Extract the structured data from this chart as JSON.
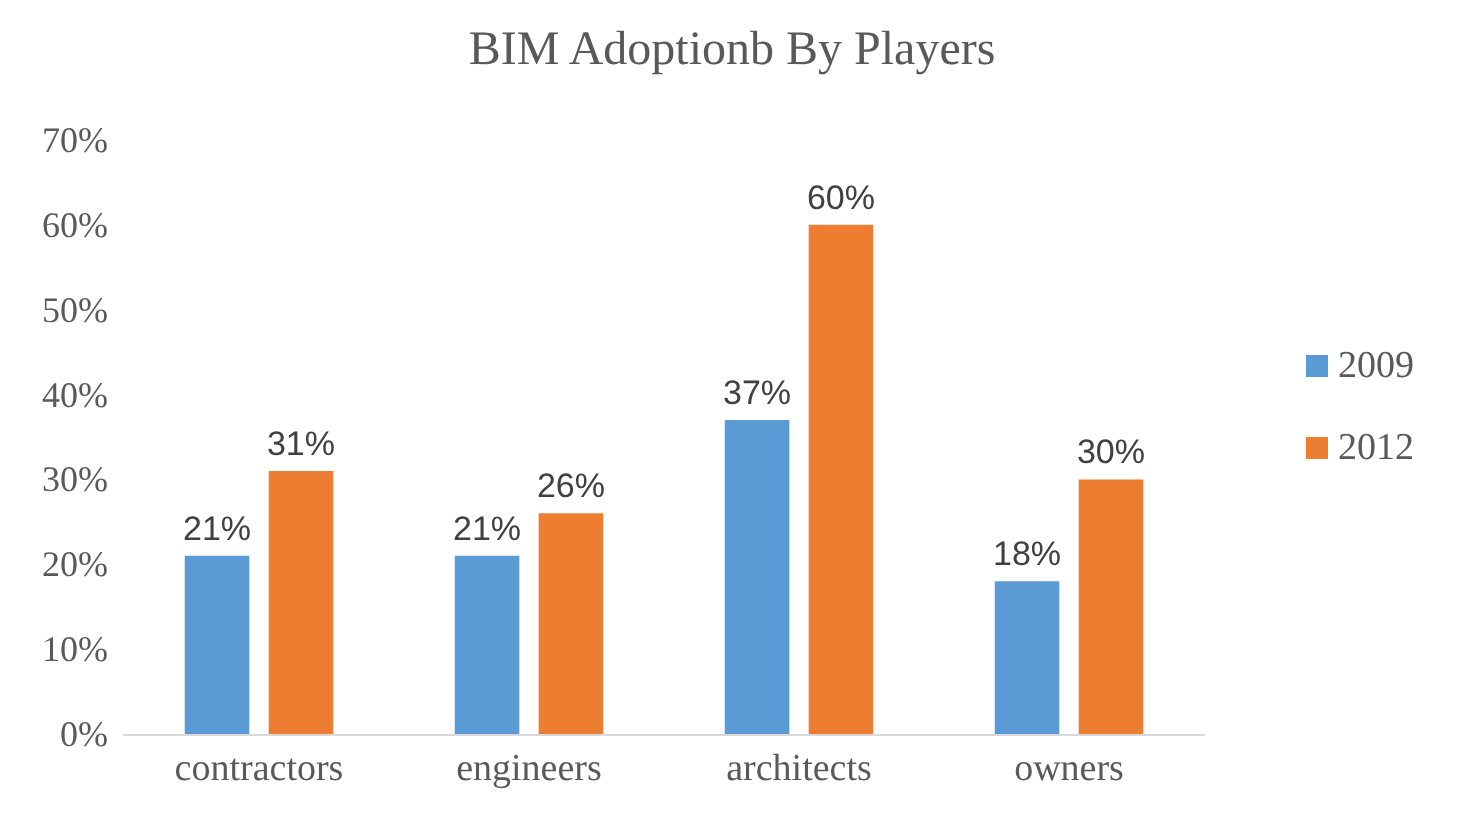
{
  "chart_data": {
    "type": "bar",
    "title": "BIM Adoptionb By Players",
    "categories": [
      "contractors",
      "engineers",
      "architects",
      "owners"
    ],
    "series": [
      {
        "name": "2009",
        "color": "#5b9bd5",
        "values": [
          21,
          21,
          37,
          18
        ],
        "value_labels": [
          "21%",
          "21%",
          "37%",
          "18%"
        ]
      },
      {
        "name": "2012",
        "color": "#ed7d31",
        "values": [
          31,
          26,
          60,
          30
        ],
        "value_labels": [
          "31%",
          "26%",
          "60%",
          "30%"
        ]
      }
    ],
    "ylim": [
      0,
      70
    ],
    "yticks": [
      {
        "value": 0,
        "label": "0%"
      },
      {
        "value": 10,
        "label": "10%"
      },
      {
        "value": 20,
        "label": "20%"
      },
      {
        "value": 30,
        "label": "30%"
      },
      {
        "value": 40,
        "label": "40%"
      },
      {
        "value": 50,
        "label": "50%"
      },
      {
        "value": 60,
        "label": "60%"
      },
      {
        "value": 70,
        "label": "70%"
      }
    ],
    "grid": false,
    "legend": "right"
  }
}
